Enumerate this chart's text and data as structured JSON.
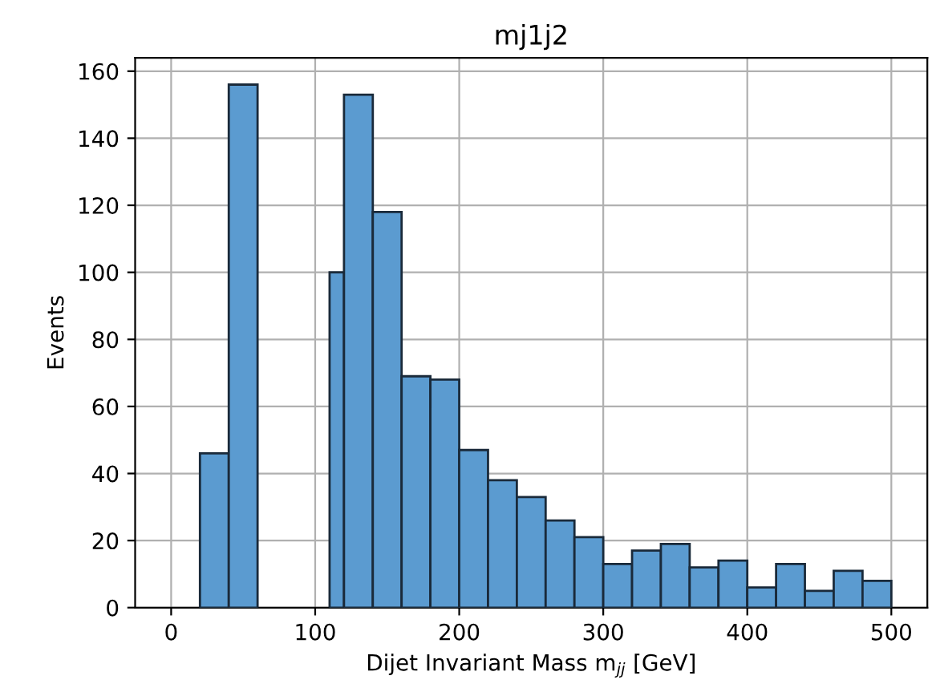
{
  "chart_data": {
    "type": "histogram",
    "title": "mj1j2",
    "xlabel": "Dijet Invariant Mass m$_{jj}$ [GeV]",
    "ylabel": "Events",
    "bins": [
      20,
      40,
      60,
      110,
      120,
      140,
      160,
      180,
      200,
      220,
      240,
      260,
      280,
      300,
      320,
      340,
      360,
      380,
      400,
      420,
      440,
      460,
      480,
      500
    ],
    "values": [
      46,
      156,
      null,
      100,
      153,
      118,
      69,
      68,
      47,
      38,
      33,
      26,
      21,
      13,
      17,
      19,
      12,
      14,
      6,
      13,
      5,
      11,
      8
    ],
    "color": "#5b9bd0",
    "xlim": [
      -25,
      525
    ],
    "ylim": [
      0,
      164
    ],
    "xticks": [
      0,
      100,
      200,
      300,
      400,
      500
    ],
    "yticks": [
      0,
      20,
      40,
      60,
      80,
      100,
      120,
      140,
      160
    ],
    "grid": true
  }
}
